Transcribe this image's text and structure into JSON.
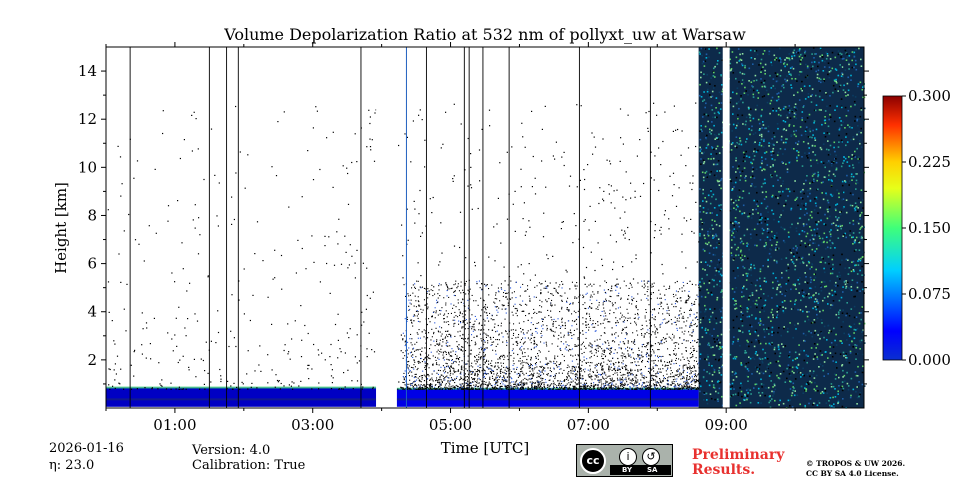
{
  "chart_data": {
    "type": "heatmap",
    "title": "Volume Depolarization Ratio at 532 nm of pollyxt_uw at Warsaw",
    "xlabel": "Time [UTC]",
    "ylabel": "Height [km]",
    "x_unit": "hours UTC",
    "xlim": [
      0.0,
      11.0
    ],
    "ylim": [
      0.0,
      15.0
    ],
    "x_ticks": [
      1,
      3,
      5,
      7,
      9
    ],
    "x_tick_labels": [
      "01:00",
      "03:00",
      "05:00",
      "07:00",
      "09:00"
    ],
    "x_minor_ticks": [
      0,
      2,
      4,
      6,
      8,
      10
    ],
    "y_ticks": [
      2,
      4,
      6,
      8,
      10,
      12,
      14
    ],
    "y_tick_labels": [
      "2",
      "4",
      "6",
      "8",
      "10",
      "12",
      "14"
    ],
    "colorbar": {
      "min": 0.0,
      "max": 0.3,
      "ticks": [
        0.0,
        0.075,
        0.15,
        0.225,
        0.3
      ],
      "tick_labels": [
        "0.000",
        "0.075",
        "0.150",
        "0.225",
        "0.300"
      ],
      "colormap": "jet"
    },
    "data_gaps_hours": [
      [
        3.92,
        4.22
      ],
      [
        8.95,
        9.05
      ]
    ],
    "thin_profile_lines_hours": [
      0.35,
      1.5,
      1.75,
      1.92,
      3.7,
      4.65,
      5.2,
      5.27,
      5.47,
      5.85,
      6.87,
      7.9
    ],
    "blue_marker_line_hour": 4.36,
    "noise_start_hour": 8.6,
    "regions": [
      {
        "name": "aerosol layer",
        "t_start": 0.0,
        "t_end": 3.92,
        "z_bottom": 0.05,
        "z_top": 0.85,
        "value": 0.02
      },
      {
        "name": "aerosol layer",
        "t_start": 4.22,
        "t_end": 8.6,
        "z_bottom": 0.05,
        "z_top": 0.8,
        "value": 0.03
      },
      {
        "name": "noisy signal",
        "t_start": 8.6,
        "t_end": 11.0,
        "z_bottom": 0.0,
        "z_top": 15.0,
        "value": 0.07
      }
    ]
  },
  "footer": {
    "date": "2026-01-16",
    "eta": "η: 23.0",
    "version": "Version: 4.0",
    "calibration": "Calibration: True",
    "preliminary_line1": "Preliminary",
    "preliminary_line2": "Results.",
    "copyright_line1": "© TROPOS & UW 2026.",
    "copyright_line2": "CC BY SA 4.0 License.",
    "license_badge": {
      "cc": "cc",
      "by": "BY",
      "sa": "SA"
    }
  }
}
